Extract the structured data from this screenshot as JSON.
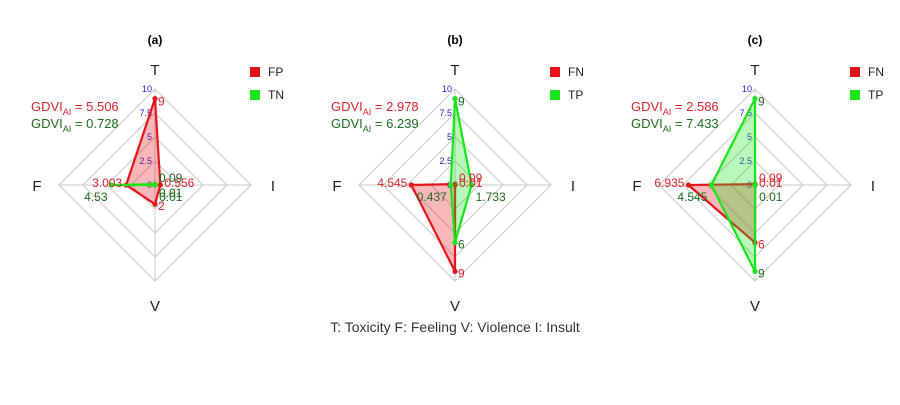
{
  "caption": "T: Toxicity  F: Feeling  V: Violence  I: Insult",
  "colors": {
    "red": "#e8141c",
    "green": "#19e619",
    "red_text": "#d7262c",
    "green_text": "#1e6b1e",
    "tick_text": "#2222cc",
    "grid": "#c8c8c8"
  },
  "chart_data": [
    {
      "type": "radar",
      "panel_label": "(a)",
      "axes": [
        "T",
        "I",
        "V",
        "F"
      ],
      "rmax": 10,
      "ticks": [
        "0",
        "2.5",
        "5",
        "7.5",
        "10"
      ],
      "tick_values": [
        0,
        2.5,
        5,
        7.5,
        10
      ],
      "gdvi": [
        {
          "label_prefix": "GDVI",
          "label_sub": "AI",
          "label_value": "= 5.506",
          "color": "red"
        },
        {
          "label_prefix": "GDVI",
          "label_sub": "AI",
          "label_value": "= 0.728",
          "color": "green"
        }
      ],
      "series": [
        {
          "name": "FP",
          "color": "red",
          "values": [
            9,
            0.556,
            2,
            3.003
          ],
          "labels": [
            "9",
            "0.556",
            "2",
            "3.003"
          ]
        },
        {
          "name": "TN",
          "color": "green",
          "values": [
            0.09,
            0.01,
            0.01,
            4.53
          ],
          "labels": [
            "0.09",
            "0.01",
            "0.01",
            "4.53"
          ]
        }
      ]
    },
    {
      "type": "radar",
      "panel_label": "(b)",
      "axes": [
        "T",
        "I",
        "V",
        "F"
      ],
      "rmax": 10,
      "ticks": [
        "0",
        "2.5",
        "5",
        "7.5",
        "10"
      ],
      "tick_values": [
        0,
        2.5,
        5,
        7.5,
        10
      ],
      "gdvi": [
        {
          "label_prefix": "GDVI",
          "label_sub": "AI",
          "label_value": "= 2.978",
          "color": "red"
        },
        {
          "label_prefix": "GDVI",
          "label_sub": "AI",
          "label_value": "= 6.239",
          "color": "green"
        }
      ],
      "series": [
        {
          "name": "FN",
          "color": "red",
          "values": [
            0.09,
            0.01,
            9,
            4.545
          ],
          "labels": [
            "0.09",
            "0.01",
            "9",
            "4.545"
          ]
        },
        {
          "name": "TP",
          "color": "green",
          "values": [
            9,
            1.733,
            6,
            0.437
          ],
          "labels": [
            "9",
            "1.733",
            "6",
            "0.437"
          ]
        }
      ]
    },
    {
      "type": "radar",
      "panel_label": "(c)",
      "axes": [
        "T",
        "I",
        "V",
        "F"
      ],
      "rmax": 10,
      "ticks": [
        "0",
        "2.5",
        "5",
        "7.5",
        "10"
      ],
      "tick_values": [
        0,
        2.5,
        5,
        7.5,
        10
      ],
      "gdvi": [
        {
          "label_prefix": "GDVI",
          "label_sub": "AI",
          "label_value": "= 2.586",
          "color": "red"
        },
        {
          "label_prefix": "GDVI",
          "label_sub": "AI",
          "label_value": "= 7.433",
          "color": "green"
        }
      ],
      "series": [
        {
          "name": "FN",
          "color": "red",
          "values": [
            0.09,
            0.01,
            6,
            6.935
          ],
          "labels": [
            "0.09",
            "0.01",
            "6",
            "6.935"
          ]
        },
        {
          "name": "TP",
          "color": "green",
          "values": [
            9,
            0.01,
            9,
            4.545
          ],
          "labels": [
            "9",
            "0.01",
            "9",
            "4.545"
          ]
        }
      ]
    }
  ]
}
